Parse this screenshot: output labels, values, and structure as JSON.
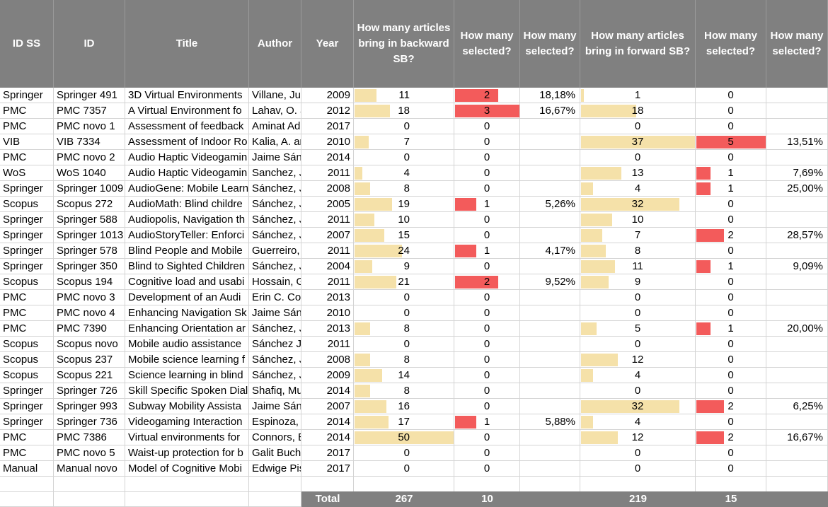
{
  "headers": {
    "id_ss": "ID SS",
    "id": "ID",
    "title": "Title",
    "author": "Author",
    "year": "Year",
    "backward": "How many articles bring in backward SB?",
    "sel_backward": "How many selected?",
    "pct_backward": "How many selected?",
    "forward": "How many articles bring in forward SB?",
    "sel_forward": "How many selected?",
    "pct_forward": "How many selected?"
  },
  "rows": [
    {
      "id_ss": "Springer",
      "id": "Springer 491",
      "title": "3D Virtual Environments",
      "author": "Villane, Ju",
      "year": "2009",
      "backward": 11,
      "sel_b": 2,
      "pct_b": "18,18%",
      "forward": 1,
      "sel_f": 0,
      "pct_f": ""
    },
    {
      "id_ss": "PMC",
      "id": "PMC 7357",
      "title": "A Virtual Environment fo",
      "author": "Lahav, O. a",
      "year": "2012",
      "backward": 18,
      "sel_b": 3,
      "pct_b": "16,67%",
      "forward": 18,
      "sel_f": 0,
      "pct_f": ""
    },
    {
      "id_ss": "PMC",
      "id": "PMC novo 1",
      "title": "Assessment of feedback",
      "author": "Aminat Ad",
      "year": "2017",
      "backward": 0,
      "sel_b": 0,
      "pct_b": "",
      "forward": 0,
      "sel_f": 0,
      "pct_f": ""
    },
    {
      "id_ss": "VIB",
      "id": "VIB 7334",
      "title": "Assessment of Indoor Ro",
      "author": "Kalia, A. ar",
      "year": "2010",
      "backward": 7,
      "sel_b": 0,
      "pct_b": "",
      "forward": 37,
      "sel_f": 5,
      "pct_f": "13,51%"
    },
    {
      "id_ss": "PMC",
      "id": "PMC novo 2",
      "title": "Audio Haptic Videogamin",
      "author": "Jaime Sán",
      "year": "2014",
      "backward": 0,
      "sel_b": 0,
      "pct_b": "",
      "forward": 0,
      "sel_f": 0,
      "pct_f": ""
    },
    {
      "id_ss": "WoS",
      "id": "WoS 1040",
      "title": "Audio Haptic Videogamin",
      "author": "Sanchez, J.",
      "year": "2011",
      "backward": 4,
      "sel_b": 0,
      "pct_b": "",
      "forward": 13,
      "sel_f": 1,
      "pct_f": "7,69%"
    },
    {
      "id_ss": "Springer",
      "id": "Springer 1009",
      "title": "AudioGene: Mobile Learn",
      "author": "Sánchez, J.",
      "year": "2008",
      "backward": 8,
      "sel_b": 0,
      "pct_b": "",
      "forward": 4,
      "sel_f": 1,
      "pct_f": "25,00%"
    },
    {
      "id_ss": "Scopus",
      "id": "Scopus 272",
      "title": "AudioMath: Blind childre",
      "author": "Sánchez, J.",
      "year": "2005",
      "backward": 19,
      "sel_b": 1,
      "pct_b": "5,26%",
      "forward": 32,
      "sel_f": 0,
      "pct_f": ""
    },
    {
      "id_ss": "Springer",
      "id": "Springer 588",
      "title": "Audiopolis, Navigation th",
      "author": "Sánchez, J.",
      "year": "2011",
      "backward": 10,
      "sel_b": 0,
      "pct_b": "",
      "forward": 10,
      "sel_f": 0,
      "pct_f": ""
    },
    {
      "id_ss": "Springer",
      "id": "Springer 1013",
      "title": "AudioStoryTeller: Enforci",
      "author": "Sánchez, J.",
      "year": "2007",
      "backward": 15,
      "sel_b": 0,
      "pct_b": "",
      "forward": 7,
      "sel_f": 2,
      "pct_f": "28,57%"
    },
    {
      "id_ss": "Springer",
      "id": "Springer 578",
      "title": "Blind People and Mobile",
      "author": "Guerreiro,",
      "year": "2011",
      "backward": 24,
      "sel_b": 1,
      "pct_b": "4,17%",
      "forward": 8,
      "sel_f": 0,
      "pct_f": ""
    },
    {
      "id_ss": "Springer",
      "id": "Springer 350",
      "title": "Blind to Sighted Children",
      "author": "Sánchez, J.",
      "year": "2004",
      "backward": 9,
      "sel_b": 0,
      "pct_b": "",
      "forward": 11,
      "sel_f": 1,
      "pct_f": "9,09%"
    },
    {
      "id_ss": "Scopus",
      "id": "Scopus 194",
      "title": "Cognitive load and usabi",
      "author": "Hossain, G",
      "year": "2011",
      "backward": 21,
      "sel_b": 2,
      "pct_b": "9,52%",
      "forward": 9,
      "sel_f": 0,
      "pct_f": ""
    },
    {
      "id_ss": "PMC",
      "id": "PMC novo 3",
      "title": "Development of an Audi",
      "author": "Erin C. Cor",
      "year": "2013",
      "backward": 0,
      "sel_b": 0,
      "pct_b": "",
      "forward": 0,
      "sel_f": 0,
      "pct_f": ""
    },
    {
      "id_ss": "PMC",
      "id": "PMC novo 4",
      "title": "Enhancing Navigation Sk",
      "author": "Jaime Sán",
      "year": "2010",
      "backward": 0,
      "sel_b": 0,
      "pct_b": "",
      "forward": 0,
      "sel_f": 0,
      "pct_f": ""
    },
    {
      "id_ss": "PMC",
      "id": "PMC 7390",
      "title": "Enhancing Orientation ar",
      "author": "Sánchez, J.",
      "year": "2013",
      "backward": 8,
      "sel_b": 0,
      "pct_b": "",
      "forward": 5,
      "sel_f": 1,
      "pct_f": "20,00%"
    },
    {
      "id_ss": "Scopus",
      "id": "Scopus novo",
      "title": "Mobile audio assistance",
      "author": "Sánchez J.",
      "year": "2011",
      "backward": 0,
      "sel_b": 0,
      "pct_b": "",
      "forward": 0,
      "sel_f": 0,
      "pct_f": ""
    },
    {
      "id_ss": "Scopus",
      "id": "Scopus 237",
      "title": "Mobile science learning f",
      "author": "Sánchez, J.",
      "year": "2008",
      "backward": 8,
      "sel_b": 0,
      "pct_b": "",
      "forward": 12,
      "sel_f": 0,
      "pct_f": ""
    },
    {
      "id_ss": "Scopus",
      "id": "Scopus 221",
      "title": "Science learning in blind",
      "author": "Sánchez, J.",
      "year": "2009",
      "backward": 14,
      "sel_b": 0,
      "pct_b": "",
      "forward": 4,
      "sel_f": 0,
      "pct_f": ""
    },
    {
      "id_ss": "Springer",
      "id": "Springer 726",
      "title": "Skill Specific Spoken Dial",
      "author": "Shafiq, Mu",
      "year": "2014",
      "backward": 8,
      "sel_b": 0,
      "pct_b": "",
      "forward": 0,
      "sel_f": 0,
      "pct_f": ""
    },
    {
      "id_ss": "Springer",
      "id": "Springer 993",
      "title": "Subway Mobility Assista",
      "author": "Jaime Sán",
      "year": "2007",
      "backward": 16,
      "sel_b": 0,
      "pct_b": "",
      "forward": 32,
      "sel_f": 2,
      "pct_f": "6,25%"
    },
    {
      "id_ss": "Springer",
      "id": "Springer 736",
      "title": "Videogaming Interaction",
      "author": "Espinoza,",
      "year": "2014",
      "backward": 17,
      "sel_b": 1,
      "pct_b": "5,88%",
      "forward": 4,
      "sel_f": 0,
      "pct_f": ""
    },
    {
      "id_ss": "PMC",
      "id": "PMC 7386",
      "title": "Virtual environments for",
      "author": "Connors, E",
      "year": "2014",
      "backward": 50,
      "sel_b": 0,
      "pct_b": "",
      "forward": 12,
      "sel_f": 2,
      "pct_f": "16,67%"
    },
    {
      "id_ss": "PMC",
      "id": "PMC novo 5",
      "title": "Waist-up protection for b",
      "author": "Galit Buch",
      "year": "2017",
      "backward": 0,
      "sel_b": 0,
      "pct_b": "",
      "forward": 0,
      "sel_f": 0,
      "pct_f": ""
    },
    {
      "id_ss": "Manual",
      "id": "Manual novo",
      "title": "Model of Cognitive Mobi",
      "author": "Edwige Pis",
      "year": "2017",
      "backward": 0,
      "sel_b": 0,
      "pct_b": "",
      "forward": 0,
      "sel_f": 0,
      "pct_f": ""
    }
  ],
  "totals": {
    "label": "Total",
    "backward": "267",
    "sel_backward": "10",
    "forward": "219",
    "sel_forward": "15"
  },
  "bar_scale": {
    "backward_max": 50,
    "sel_backward_max": 3,
    "forward_max": 37,
    "sel_forward_max": 5
  },
  "colors": {
    "header_bg": "#808080",
    "data_bar_beige": "#f5e1a9",
    "data_bar_red": "#f35b5b"
  }
}
